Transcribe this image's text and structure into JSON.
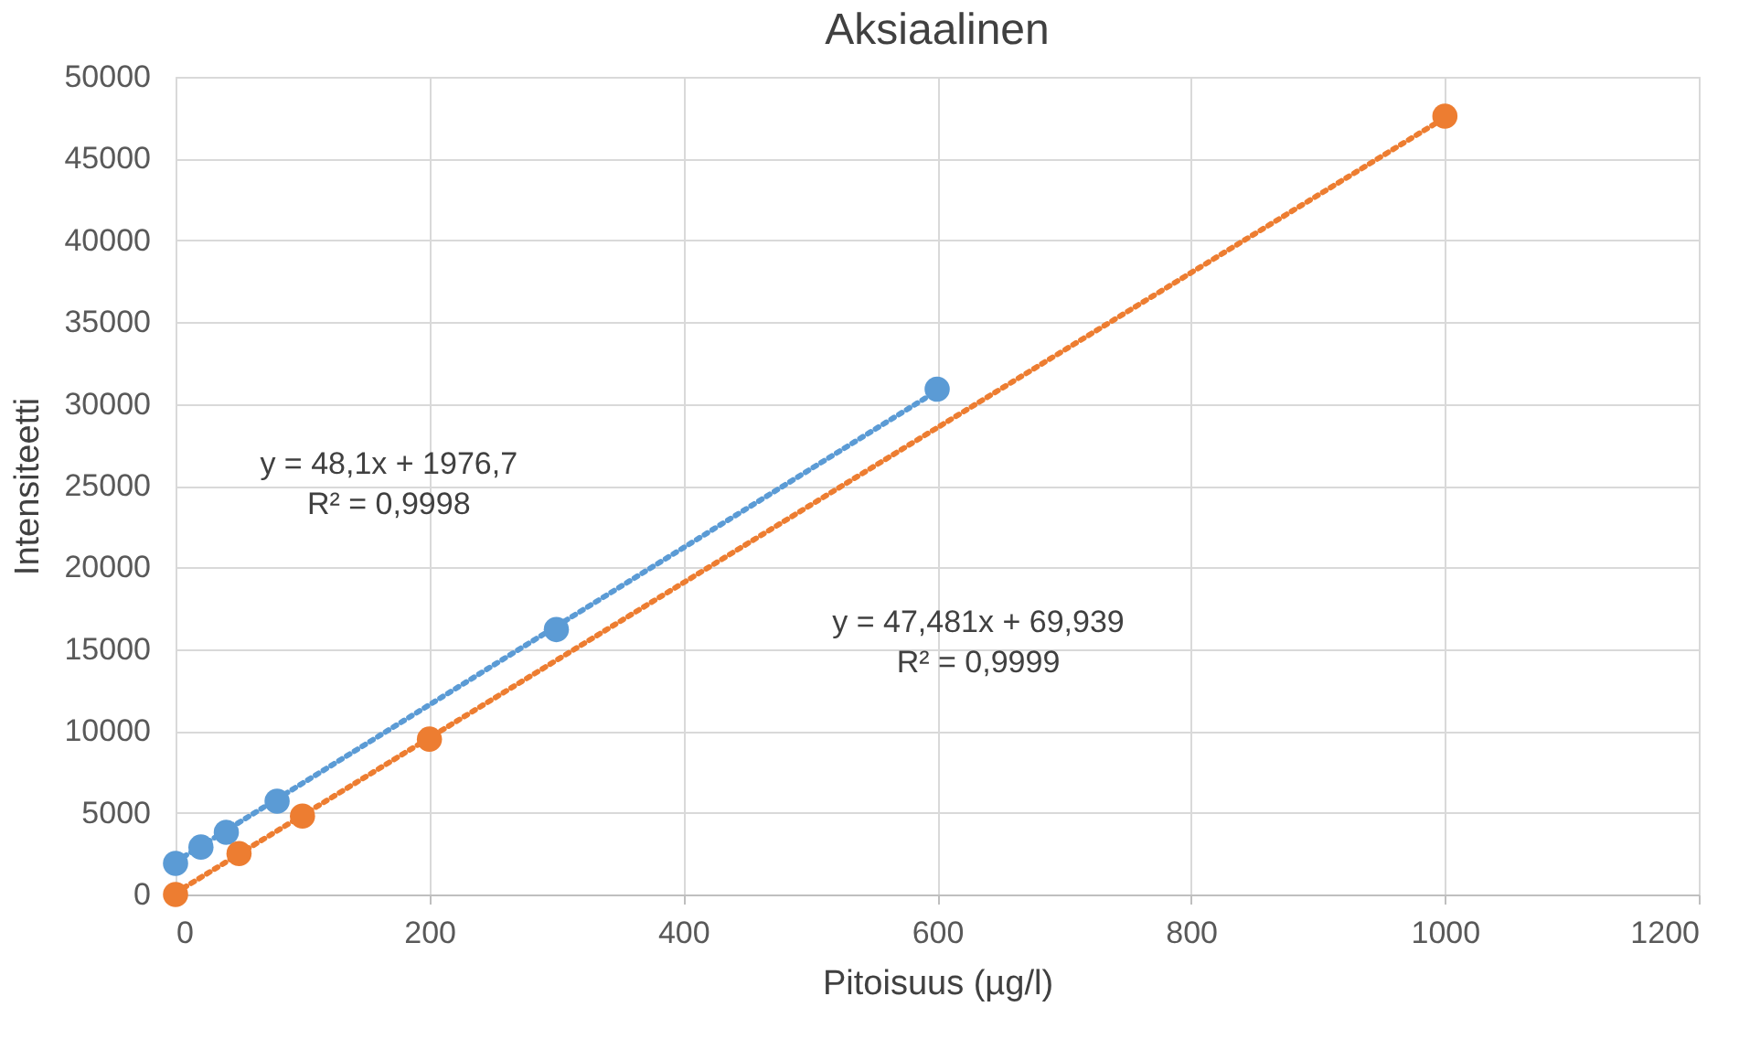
{
  "chart_data": {
    "type": "scatter",
    "title": "Aksiaalinen",
    "xlabel": "Pitoisuus (µg/l)",
    "ylabel": "Intensiteetti",
    "series": [
      {
        "color": "#5b9bd5",
        "x": [
          0,
          20,
          40,
          80,
          300,
          600
        ],
        "values": [
          1900,
          2900,
          3800,
          5700,
          16200,
          30900
        ]
      },
      {
        "color": "#ed7d31",
        "x": [
          0,
          50,
          100,
          200,
          1000
        ],
        "values": [
          0,
          2500,
          4800,
          9500,
          47600
        ],
        "marker": "circle"
      },
      {
        "type": "line",
        "color": "#5b9bd5",
        "x": [
          0,
          600
        ],
        "values": [
          2000,
          30800
        ],
        "line_style": "dotted",
        "marker": "none"
      },
      {
        "type": "line",
        "color": "#ed7d31",
        "x": [
          0,
          1000
        ],
        "values": [
          100,
          47500
        ],
        "line_style": "dotted",
        "marker": "none"
      }
    ],
    "annotations": [
      "y = 48,1x + 1976,7\nR² = 0,9998",
      "y = 47,481x + 69,939\nR² = 0,9999"
    ],
    "xlim": [
      0,
      1200
    ],
    "xticks": [
      0,
      200,
      400,
      600,
      800,
      1000,
      1200
    ],
    "ylim": [
      0,
      50000
    ],
    "yticks": [
      0,
      5000,
      10000,
      15000,
      20000,
      25000,
      30000,
      35000,
      40000,
      45000,
      50000
    ],
    "grid": true,
    "marker": "circle",
    "legend": false
  }
}
